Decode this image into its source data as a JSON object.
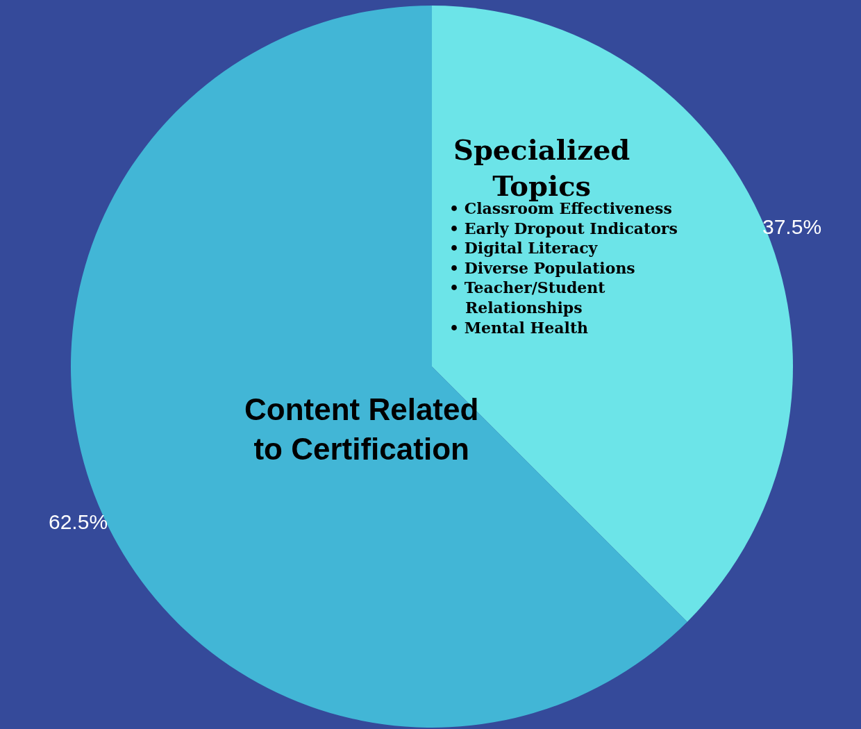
{
  "chart_data": {
    "type": "pie",
    "categories": [
      "Specialized Topics",
      "Content Related to Certification"
    ],
    "values": [
      37.5,
      62.5
    ],
    "colors": [
      "#6ce4e8",
      "#42b6d6"
    ],
    "value_labels": [
      "37.5%",
      "62.5%"
    ],
    "annotations": [
      "• Classroom Effectiveness\n• Early Dropout Indicators\n• Digital Literacy\n• Diverse Populations\n• Teacher/Student\n   Relationships\n• Mental Health"
    ],
    "legend": false
  }
}
